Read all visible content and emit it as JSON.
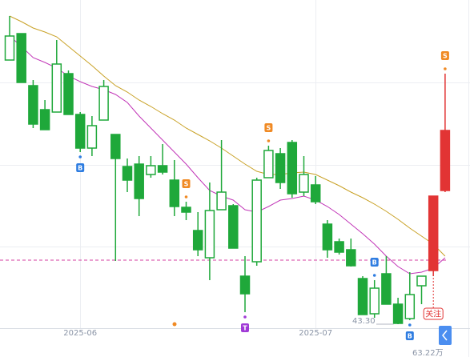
{
  "chart_data": {
    "type": "candlestick",
    "categories": [
      null,
      null,
      null,
      null,
      null,
      null,
      "2025-06",
      null,
      null,
      null,
      null,
      null,
      null,
      null,
      null,
      null,
      null,
      null,
      null,
      null,
      null,
      null,
      null,
      null,
      null,
      null,
      "2025-07",
      null,
      null,
      null,
      null,
      null,
      null,
      null,
      null,
      null,
      null,
      null
    ],
    "open": [
      59.8,
      61.45,
      58.2,
      56.7,
      56.55,
      58.95,
      56.4,
      54.3,
      56.05,
      55.15,
      53.15,
      53.3,
      52.65,
      53.2,
      52.3,
      50.6,
      49.15,
      47.45,
      50.45,
      50.7,
      46.3,
      47.2,
      52.45,
      53.95,
      54.65,
      51.55,
      52.0,
      49.55,
      48.45,
      47.95,
      46.15,
      43.95,
      46.45,
      44.55,
      43.65,
      45.7,
      46.65,
      51.65
    ],
    "high": [
      62.55,
      61.45,
      58.55,
      57.3,
      61.05,
      59.15,
      56.55,
      56.3,
      58.55,
      55.15,
      53.65,
      53.8,
      53.8,
      54.55,
      53.55,
      50.95,
      50.3,
      52.15,
      54.8,
      50.8,
      47.55,
      52.45,
      54.45,
      54.3,
      54.8,
      53.8,
      52.55,
      49.8,
      48.65,
      48.65,
      46.3,
      46.05,
      47.55,
      44.95,
      46.55,
      46.3,
      51.3,
      58.95
    ],
    "low": [
      59.8,
      58.4,
      55.55,
      55.45,
      56.55,
      56.4,
      54.05,
      53.8,
      56.05,
      47.25,
      51.55,
      50.05,
      52.45,
      52.65,
      50.05,
      49.8,
      47.55,
      46.05,
      50.45,
      48.05,
      44.05,
      46.95,
      52.45,
      51.75,
      51.2,
      51.3,
      50.8,
      47.45,
      47.65,
      46.9,
      43.9,
      43.7,
      44.55,
      43.3,
      43.55,
      44.55,
      46.3,
      51.55
    ],
    "close": [
      61.3,
      58.4,
      55.8,
      55.45,
      59.55,
      56.4,
      54.3,
      55.7,
      58.15,
      53.65,
      52.3,
      51.15,
      53.2,
      52.8,
      50.65,
      50.3,
      47.95,
      50.4,
      51.55,
      48.05,
      45.2,
      52.3,
      54.15,
      52.15,
      51.45,
      52.65,
      50.95,
      47.95,
      47.8,
      46.95,
      43.9,
      45.55,
      44.55,
      43.35,
      45.15,
      46.3,
      51.3,
      55.4
    ],
    "colors": [
      "#1fa83a",
      "#1fa83a",
      "#1fa83a",
      "#1fa83a",
      "#1fa83a",
      "#1fa83a",
      "#1fa83a",
      "#1fa83a",
      "#1fa83a",
      "#1fa83a",
      "#1fa83a",
      "#1fa83a",
      "#1fa83a",
      "#1fa83a",
      "#1fa83a",
      "#1fa83a",
      "#1fa83a",
      "#1fa83a",
      "#1fa83a",
      "#1fa83a",
      "#1fa83a",
      "#1fa83a",
      "#1fa83a",
      "#1fa83a",
      "#1fa83a",
      "#1fa83a",
      "#1fa83a",
      "#1fa83a",
      "#1fa83a",
      "#1fa83a",
      "#1fa83a",
      "#1fa83a",
      "#1fa83a",
      "#1fa83a",
      "#1fa83a",
      "#1fa83a",
      "#e23434",
      "#e23434"
    ],
    "filled": [
      false,
      true,
      true,
      true,
      false,
      true,
      true,
      false,
      false,
      true,
      true,
      true,
      false,
      true,
      true,
      true,
      true,
      false,
      false,
      true,
      true,
      false,
      false,
      true,
      true,
      false,
      true,
      true,
      true,
      true,
      true,
      false,
      true,
      true,
      false,
      false,
      true,
      true
    ],
    "series": [
      {
        "color": "#c9a227",
        "values": [
          62.55,
          62.2,
          61.8,
          61.55,
          61.25,
          60.65,
          60.05,
          59.45,
          58.8,
          58.2,
          57.8,
          57.3,
          56.9,
          56.45,
          56.05,
          55.55,
          55.15,
          54.75,
          54.3,
          53.8,
          53.3,
          52.85,
          52.65,
          52.65,
          52.75,
          52.8,
          52.65,
          52.3,
          51.95,
          51.55,
          51.2,
          50.8,
          50.35,
          49.85,
          49.3,
          48.8,
          48.3,
          47.55
        ]
      },
      {
        "color": "#c237b8",
        "values": [
          61.3,
          60.65,
          59.95,
          59.65,
          59.3,
          58.8,
          58.45,
          58.15,
          57.95,
          57.65,
          57.15,
          56.3,
          55.55,
          54.8,
          54.05,
          53.3,
          52.45,
          51.65,
          51.3,
          51.05,
          50.45,
          50.3,
          50.65,
          51.05,
          51.15,
          51.3,
          51.05,
          50.65,
          50.15,
          49.55,
          48.95,
          48.3,
          47.55,
          46.9,
          46.45,
          46.55,
          46.8,
          47.45
        ]
      }
    ],
    "ylim": [
      41.25,
      63.55
    ],
    "price_line": {
      "value": 47.3,
      "color": "#d43fa0"
    },
    "annotations": [
      {
        "index": 6,
        "label": "B",
        "position": "below",
        "color": "#2f7de1"
      },
      {
        "index": 15,
        "label": "S",
        "position": "above",
        "color": "#f08a24"
      },
      {
        "index": 20,
        "label": "T",
        "position": "below",
        "color": "#a03ad6"
      },
      {
        "index": 22,
        "label": "S",
        "position": "above",
        "color": "#f08a24"
      },
      {
        "index": 31,
        "label": "B",
        "position": "above",
        "color": "#2f7de1"
      },
      {
        "index": 34,
        "label": "B",
        "position": "below",
        "color": "#2f7de1"
      },
      {
        "index": 37,
        "label": "S",
        "position": "above",
        "color": "#f08a24"
      }
    ],
    "tag": {
      "index": 36,
      "label": "关注",
      "color": "#e23434"
    },
    "min_label": {
      "index": 33,
      "value": 43.3,
      "label": "43.30"
    },
    "footer_label": "63.22万"
  }
}
